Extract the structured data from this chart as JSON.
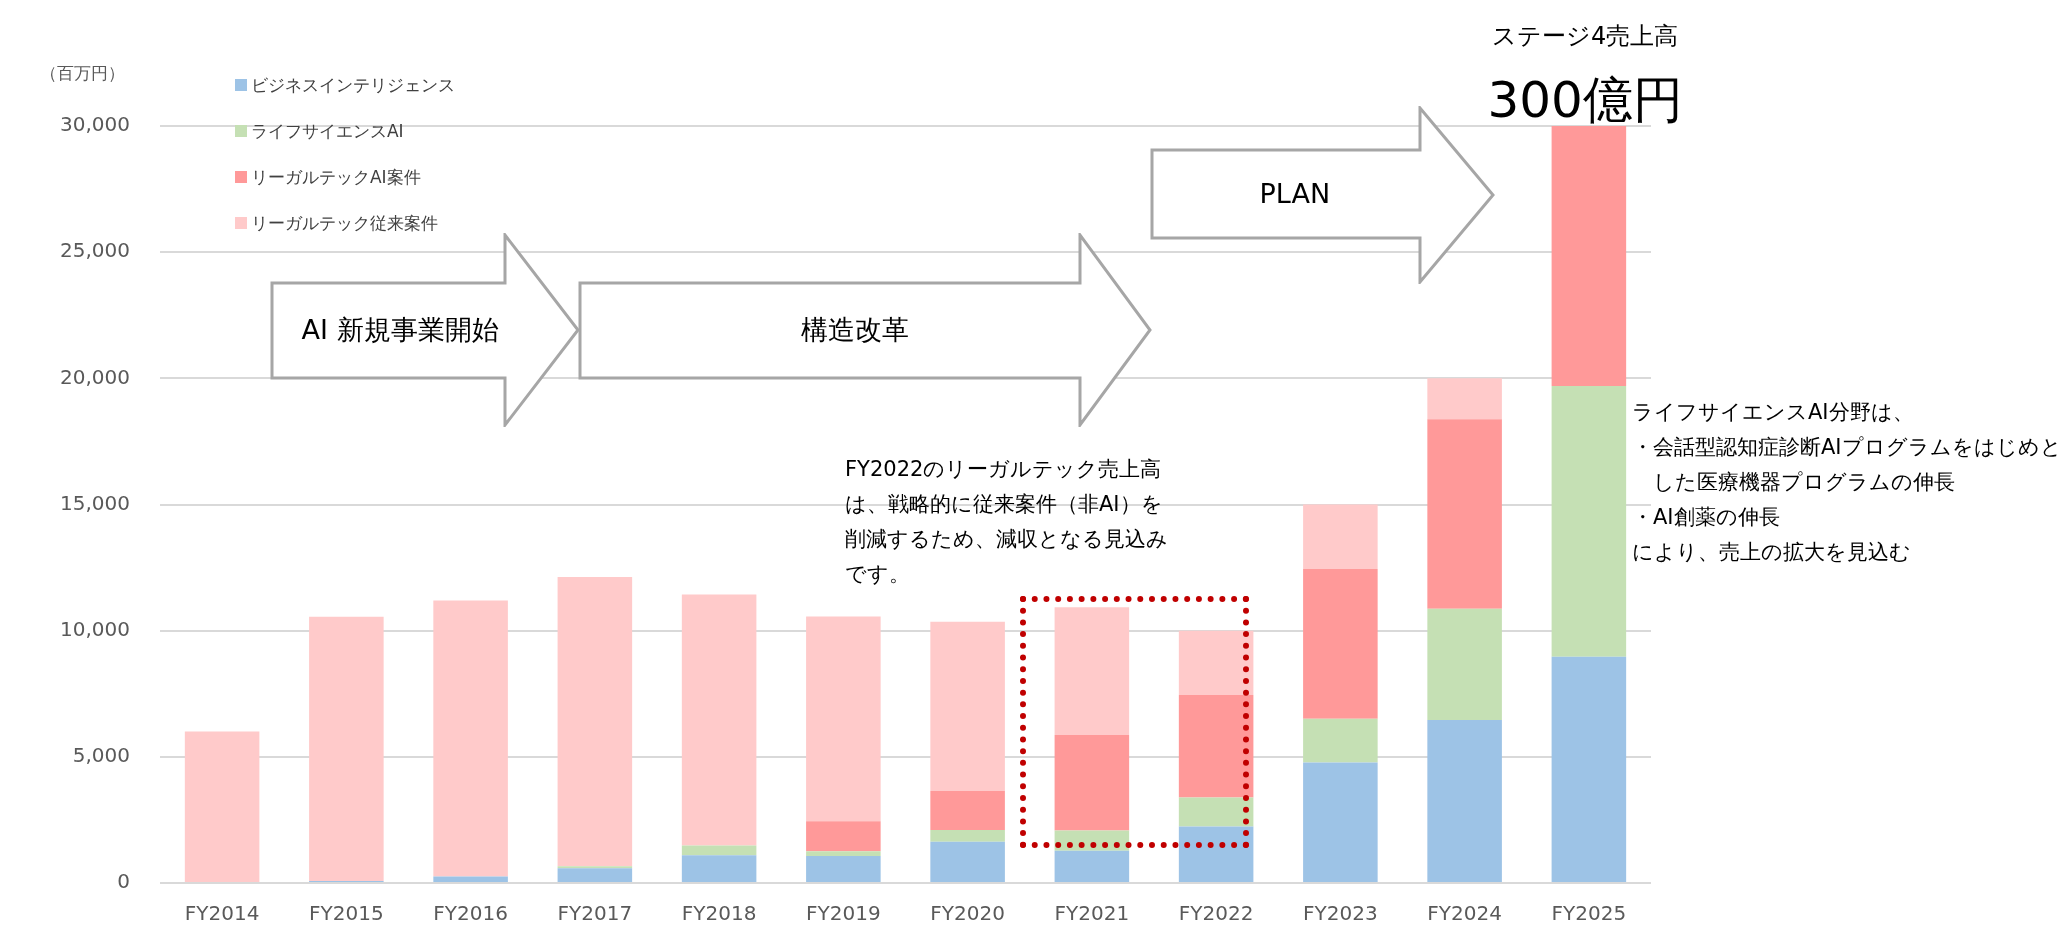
{
  "chart_data": {
    "type": "bar",
    "stacked": true,
    "ylabel": "（百万円）",
    "categories": [
      "FY2014",
      "FY2015",
      "FY2016",
      "FY2017",
      "FY2018",
      "FY2019",
      "FY2020",
      "FY2021",
      "FY2022",
      "FY2023",
      "FY2024",
      "FY2025"
    ],
    "series": [
      {
        "name": "ビジネスインテリジェンス",
        "color": "#9dc3e6",
        "values": [
          0,
          80,
          260,
          580,
          1100,
          1070,
          1630,
          1280,
          2240,
          4780,
          6460,
          8970
        ]
      },
      {
        "name": "ライフサイエンスAI",
        "color": "#c5e0b4",
        "values": [
          0,
          0,
          0,
          80,
          390,
          190,
          470,
          800,
          1150,
          1730,
          4410,
          10730
        ]
      },
      {
        "name": "リーガルテックAI案件",
        "color": "#ff9999",
        "values": [
          0,
          0,
          0,
          0,
          0,
          1190,
          1550,
          3790,
          4060,
          5930,
          7510,
          10300
        ]
      },
      {
        "name": "リーガルテック従来案件",
        "color": "#ffcaca",
        "values": [
          6000,
          10470,
          10940,
          11470,
          9940,
          8110,
          6700,
          5060,
          2550,
          2560,
          1620,
          0
        ]
      }
    ],
    "ylim": [
      0,
      30000
    ],
    "yticks": [
      {
        "value": 0,
        "label": "0"
      },
      {
        "value": 5000,
        "label": "5,000"
      },
      {
        "value": 10000,
        "label": "10,000"
      },
      {
        "value": 15000,
        "label": "15,000"
      },
      {
        "value": 20000,
        "label": "20,000"
      },
      {
        "value": 25000,
        "label": "25,000"
      },
      {
        "value": 30000,
        "label": "30,000"
      }
    ],
    "grid": "y",
    "legend": "top left",
    "annotations": [
      "AI 新規事業開始",
      "構造改革",
      "PLAN",
      "ステージ4売上高",
      "300億円",
      "FY2022のリーガルテック売上高は、戦略的に従来案件（非AI）を削減するため、減収となる見込みです。",
      "ライフサイエンスAI分野は、",
      "・会話型認知症診断AIプログラムをはじめとした医療機器プログラムの伸長",
      "・AI創薬の伸長",
      "により、売上の拡大を見込む"
    ]
  }
}
